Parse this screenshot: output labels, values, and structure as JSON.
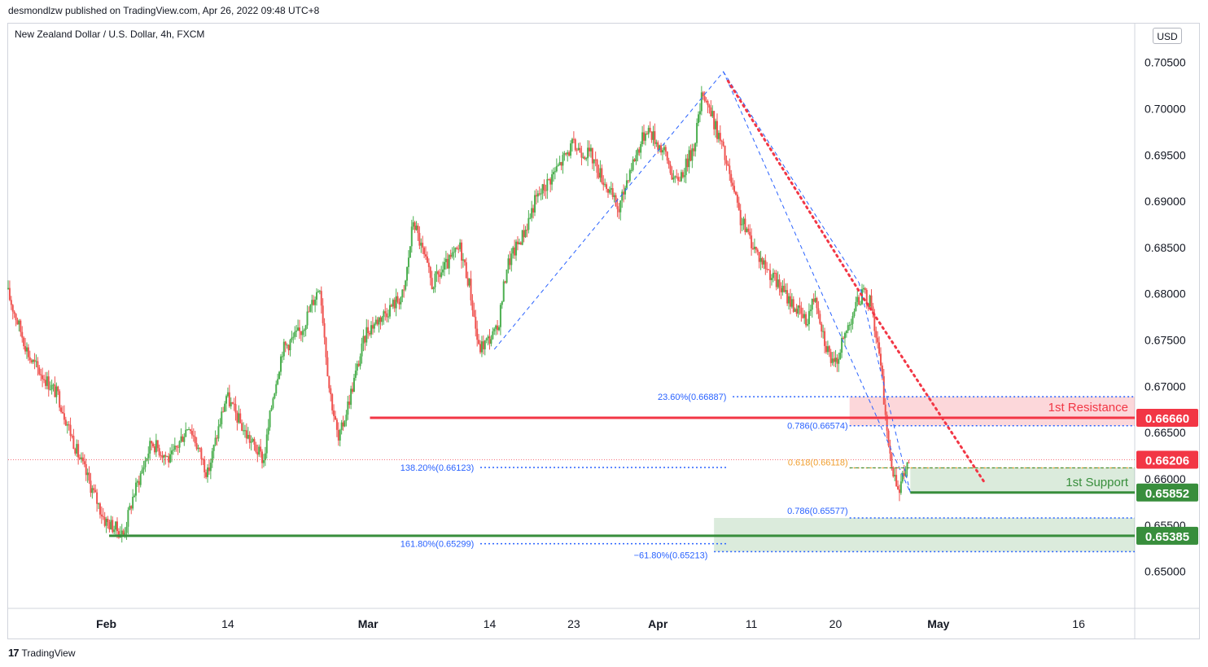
{
  "header": {
    "publisher": "desmondlzw published on TradingView.com, Apr 26, 2022 09:48 UTC+8",
    "symbol": "New Zealand Dollar / U.S. Dollar, 4h, FXCM",
    "currency": "USD"
  },
  "footer": {
    "brand": "TradingView"
  },
  "colors": {
    "up": "#4caf50",
    "down": "#ef5350",
    "resistance": "#f23645",
    "support": "#388e3c",
    "fib_blue": "#2962ff",
    "fib_text_blue": "#2962ff",
    "fib_orange": "#f0a030",
    "last_price": "#f23645"
  },
  "chart_data": {
    "type": "candlestick",
    "y_axis": {
      "range": [
        0.646,
        0.7092
      ],
      "ticks": [
        "0.70500",
        "0.70000",
        "0.69500",
        "0.69000",
        "0.68500",
        "0.68000",
        "0.67500",
        "0.67000",
        "0.66500",
        "0.66000",
        "0.65500",
        "0.65000"
      ],
      "tick_values": [
        0.705,
        0.7,
        0.695,
        0.69,
        0.685,
        0.68,
        0.675,
        0.67,
        0.665,
        0.66,
        0.655,
        0.65
      ]
    },
    "x_axis": {
      "ticks": [
        "Feb",
        "14",
        "Mar",
        "14",
        "23",
        "Apr",
        "11",
        "20",
        "May",
        "16"
      ],
      "tick_days": [
        0,
        13,
        28,
        41,
        50,
        59,
        69,
        78,
        89,
        104
      ],
      "start_day": -10.5,
      "end_day": 110
    },
    "price_path_days": [
      -10.5,
      -8,
      -5,
      -3,
      0,
      2,
      3,
      5,
      7,
      9,
      11,
      13,
      15,
      17,
      18,
      19,
      21,
      23,
      24,
      25,
      27,
      28,
      30,
      32,
      33,
      35,
      38,
      39,
      40,
      42,
      43,
      45,
      46,
      48,
      50,
      52,
      55,
      56,
      58,
      60,
      61,
      62,
      63,
      64,
      66,
      67,
      68,
      70,
      72,
      75,
      76,
      77,
      78,
      80,
      81,
      82,
      83,
      84,
      85,
      86
    ],
    "price_path_values": [
      0.6805,
      0.673,
      0.669,
      0.663,
      0.6555,
      0.654,
      0.658,
      0.664,
      0.662,
      0.666,
      0.6605,
      0.669,
      0.665,
      0.662,
      0.669,
      0.674,
      0.676,
      0.681,
      0.67,
      0.664,
      0.672,
      0.676,
      0.678,
      0.68,
      0.688,
      0.681,
      0.685,
      0.681,
      0.674,
      0.676,
      0.683,
      0.687,
      0.69,
      0.693,
      0.696,
      0.695,
      0.689,
      0.693,
      0.698,
      0.695,
      0.692,
      0.6935,
      0.696,
      0.702,
      0.696,
      0.692,
      0.688,
      0.684,
      0.681,
      0.677,
      0.68,
      0.675,
      0.672,
      0.678,
      0.68,
      0.679,
      0.672,
      0.662,
      0.659,
      0.662
    ],
    "fib_levels": [
      {
        "label": "23.60%(0.66887)",
        "value": 0.66887
      },
      {
        "label": "0.786(0.66574)",
        "value": 0.66574
      },
      {
        "label": "0.618(0.66118)",
        "value": 0.66118
      },
      {
        "label": "138.20%(0.66123)",
        "value": 0.66123
      },
      {
        "label": "0.786(0.65577)",
        "value": 0.65577
      },
      {
        "label": "161.80%(0.65299)",
        "value": 0.65299
      },
      {
        "label": "−61.80%(0.65213)",
        "value": 0.65213
      }
    ],
    "horizontal_levels": [
      {
        "name": "1st Resistance",
        "value": 0.6666,
        "price_label": "0.66660"
      },
      {
        "name": "1st Support",
        "value": 0.65852,
        "price_label": "0.65852"
      },
      {
        "name": "",
        "value": 0.65385,
        "price_label": "0.65385"
      }
    ],
    "last_price": {
      "value": 0.66206,
      "label": "0.66206"
    },
    "zones": {
      "resistance": {
        "top": 0.66887,
        "bottom": 0.66574
      },
      "support": {
        "top": 0.66118,
        "bottom": 0.65852
      },
      "lower_support": {
        "top": 0.65577,
        "bottom": 0.65213
      }
    },
    "trendline_points": [
      {
        "day": 66.5,
        "value": 0.703
      },
      {
        "day": 81,
        "value": 0.6795
      },
      {
        "day": 94,
        "value": 0.6595
      }
    ],
    "abc_pattern": [
      {
        "day": 41.5,
        "value": 0.674
      },
      {
        "day": 66,
        "value": 0.704
      },
      {
        "day": 86,
        "value": 0.6585
      },
      {
        "day": 80.5,
        "value": 0.6812
      }
    ]
  }
}
